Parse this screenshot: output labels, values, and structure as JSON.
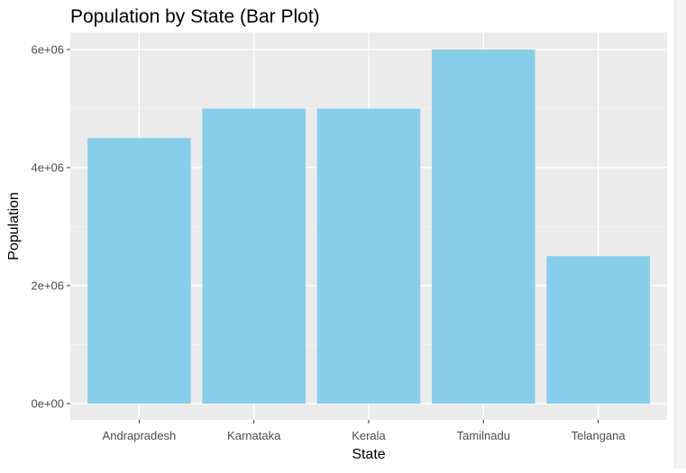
{
  "chart_data": {
    "type": "bar",
    "title": "Population by State (Bar Plot)",
    "xlabel": "State",
    "ylabel": "Population",
    "categories": [
      "Andrapradesh",
      "Karnataka",
      "Kerala",
      "Tamilnadu",
      "Telangana"
    ],
    "values": [
      4500000,
      5000000,
      5000000,
      6000000,
      2500000
    ],
    "ylim": [
      0,
      6000000
    ],
    "yticks": [
      0,
      2000000,
      4000000,
      6000000
    ],
    "ytick_labels": [
      "0e+00",
      "2e+06",
      "4e+06",
      "6e+06"
    ],
    "grid": true,
    "legend": "none",
    "colors": {
      "bar": "#87CEEB",
      "panel": "#EBEBEB",
      "grid_major": "#FFFFFF",
      "grid_minor": "#F5F5F5",
      "tick_text": "#4D4D4D",
      "title_text": "#000000"
    }
  }
}
